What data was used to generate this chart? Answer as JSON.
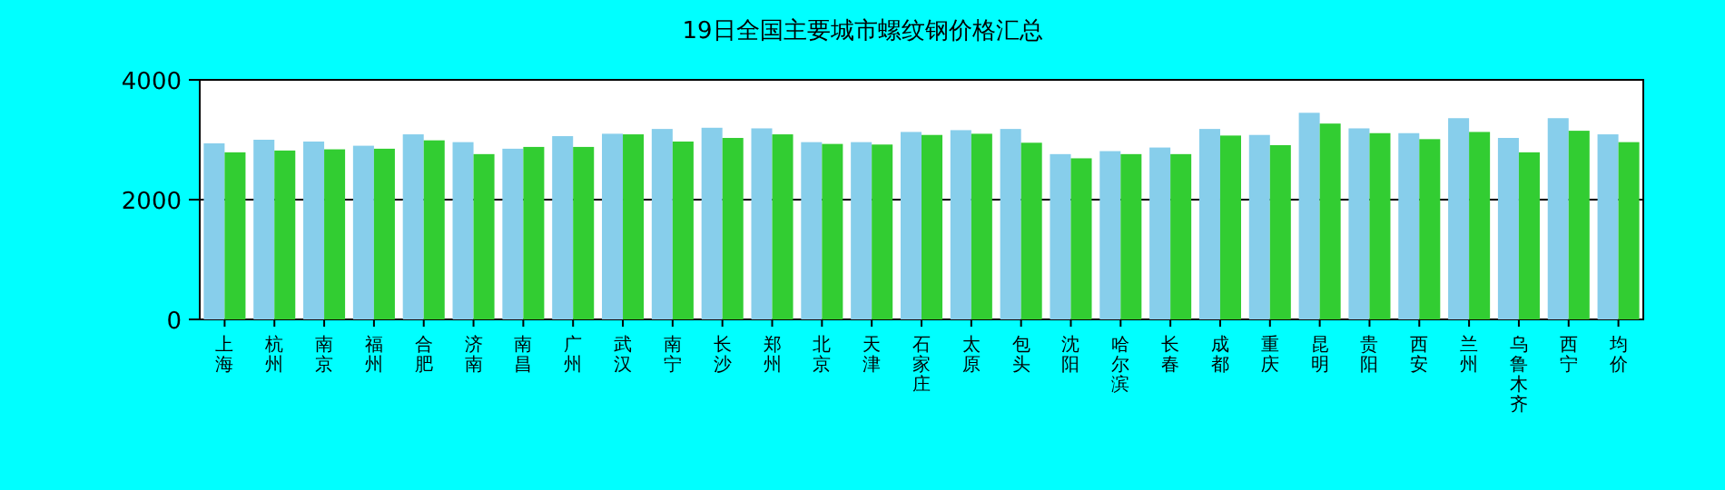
{
  "chart_data": {
    "type": "bar",
    "title": "19日全国主要城市螺纹钢价格汇总",
    "categories": [
      "上海",
      "杭州",
      "南京",
      "福州",
      "合肥",
      "济南",
      "南昌",
      "广州",
      "武汉",
      "南宁",
      "长沙",
      "郑州",
      "北京",
      "天津",
      "石家庄",
      "太原",
      "包头",
      "沈阳",
      "哈尔滨",
      "长春",
      "成都",
      "重庆",
      "昆明",
      "贵阳",
      "西安",
      "兰州",
      "乌鲁木齐",
      "西宁",
      "均价"
    ],
    "series": [
      {
        "color": "#87ceeb",
        "values": [
          2940,
          3000,
          2970,
          2900,
          3090,
          2960,
          2850,
          3060,
          3100,
          3180,
          3200,
          3190,
          2960,
          2960,
          3130,
          3160,
          3180,
          2760,
          2810,
          2870,
          3180,
          3080,
          3450,
          3190,
          3110,
          3360,
          3030,
          3360,
          3090
        ]
      },
      {
        "color": "#32cd32",
        "values": [
          2790,
          2820,
          2840,
          2850,
          2990,
          2760,
          2880,
          2880,
          3090,
          2970,
          3030,
          3090,
          2930,
          2920,
          3080,
          3100,
          2950,
          2690,
          2760,
          2760,
          3070,
          2910,
          3270,
          3110,
          3010,
          3130,
          2790,
          3150,
          2960
        ]
      }
    ],
    "ylim": [
      0,
      4000
    ],
    "yticks": [
      0,
      2000,
      4000
    ],
    "grid": "y"
  }
}
